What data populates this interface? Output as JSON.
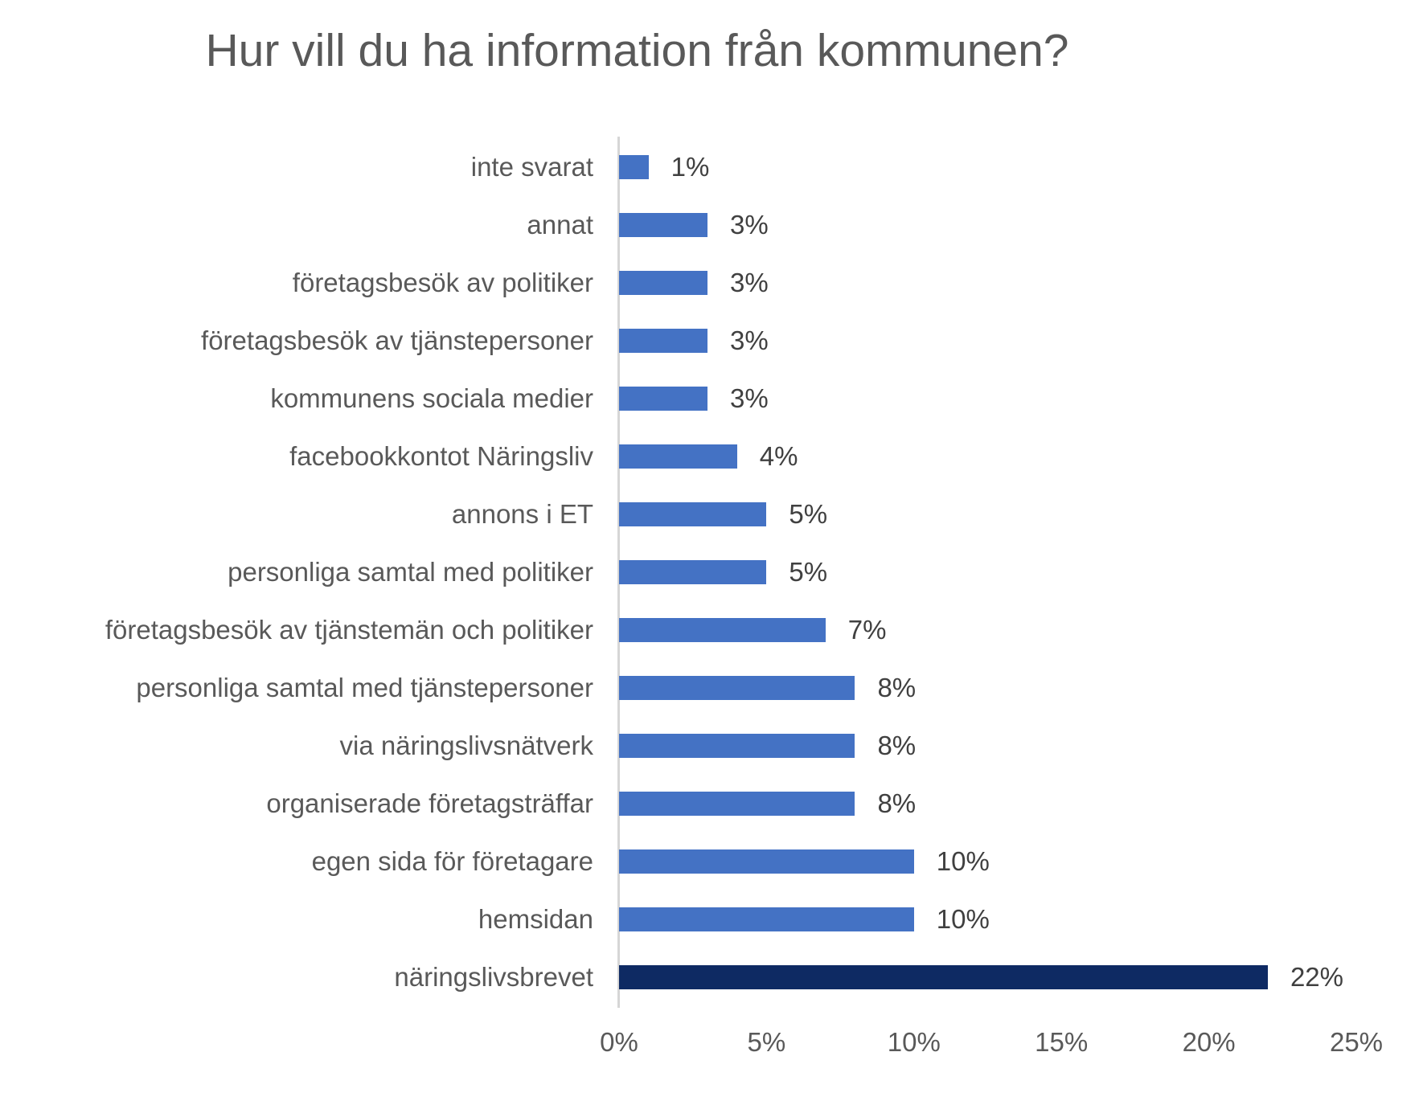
{
  "chart_data": {
    "type": "bar",
    "orientation": "horizontal",
    "title": "Hur vill du ha information från kommunen?",
    "categories": [
      "inte svarat",
      "annat",
      "företagsbesök av politiker",
      "företagsbesök av tjänstepersoner",
      "kommunens sociala medier",
      "facebookkontot Näringsliv",
      "annons i ET",
      "personliga samtal med politiker",
      "företagsbesök av tjänstemän och politiker",
      "personliga samtal med tjänstepersoner",
      "via näringslivsnätverk",
      "organiserade företagsträffar",
      "egen sida för företagare",
      "hemsidan",
      "näringslivsbrevet"
    ],
    "values": [
      1,
      3,
      3,
      3,
      3,
      4,
      5,
      5,
      7,
      8,
      8,
      8,
      10,
      10,
      22
    ],
    "value_labels": [
      "1%",
      "3%",
      "3%",
      "3%",
      "3%",
      "4%",
      "5%",
      "5%",
      "7%",
      "8%",
      "8%",
      "8%",
      "10%",
      "10%",
      "22%"
    ],
    "x_ticks": [
      "0%",
      "5%",
      "10%",
      "15%",
      "20%",
      "25%"
    ],
    "xlim": [
      0,
      25
    ],
    "xlabel": "",
    "ylabel": "",
    "grid": false,
    "legend": false,
    "bar_color": "#4472C4",
    "highlight_bar_color": "#0E2A63",
    "highlight_category": "näringslivsbrevet",
    "title_color": "#595959",
    "label_color": "#595959",
    "value_label_color": "#404040",
    "axis_line_color": "#d6d6d6"
  }
}
